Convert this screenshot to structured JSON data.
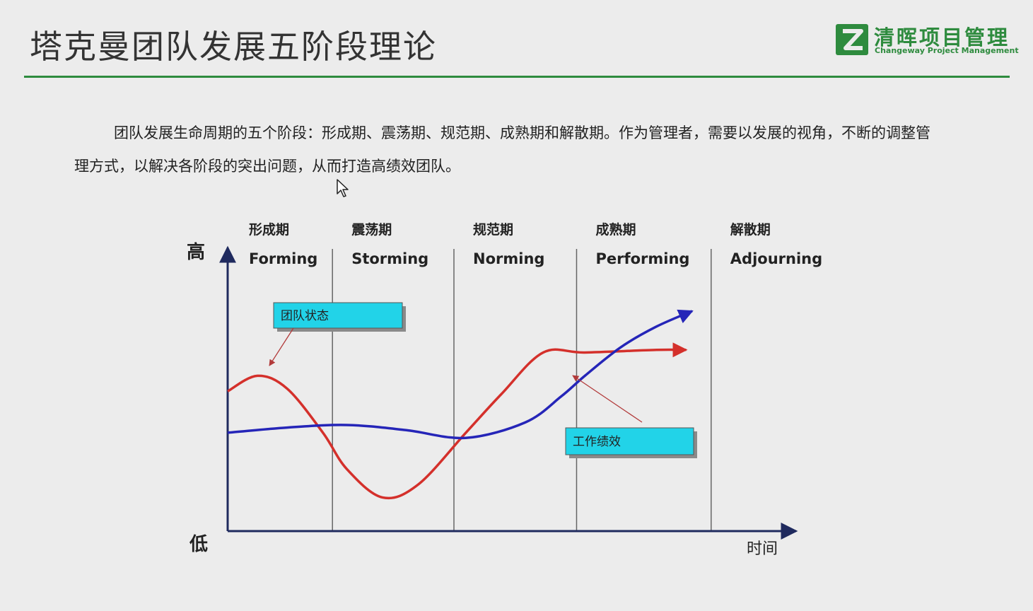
{
  "slide": {
    "title": "塔克曼团队发展五阶段理论",
    "logo": {
      "name_cn": "清晖项目管理",
      "name_en": "Changeway Project Management",
      "color": "#2e8b3e"
    },
    "paragraph": "团队发展生命周期的五个阶段：形成期、震荡期、规范期、成熟期和解散期。作为管理者，需要以发展的视角，不断的调整管理方式，以解决各阶段的突出问题，从而打造高绩效团队。"
  },
  "chart_data": {
    "type": "line",
    "title": "",
    "xlabel": "时间",
    "y_high_label": "高",
    "y_low_label": "低",
    "grid": false,
    "stages": [
      {
        "name_cn": "形成期",
        "name_en": "Forming"
      },
      {
        "name_cn": "震荡期",
        "name_en": "Storming"
      },
      {
        "name_cn": "规范期",
        "name_en": "Norming"
      },
      {
        "name_cn": "成熟期",
        "name_en": "Performing"
      },
      {
        "name_cn": "解散期",
        "name_en": "Adjourning"
      }
    ],
    "x_range": [
      0,
      4.75
    ],
    "ylim": [
      0,
      1
    ],
    "series": [
      {
        "name": "团队状态",
        "color": "#d4302b",
        "x": [
          0,
          0.25,
          0.5,
          0.8,
          1.0,
          1.3,
          1.6,
          2.0,
          2.3,
          2.65,
          3.0,
          3.6,
          3.85
        ],
        "y": [
          0.54,
          0.6,
          0.55,
          0.38,
          0.24,
          0.13,
          0.18,
          0.38,
          0.53,
          0.69,
          0.69,
          0.7,
          0.7
        ]
      },
      {
        "name": "工作绩效",
        "color": "#2525b8",
        "x": [
          0,
          0.5,
          1.0,
          1.5,
          2.0,
          2.5,
          2.8,
          3.0,
          3.3,
          3.6,
          3.9
        ],
        "y": [
          0.38,
          0.4,
          0.41,
          0.39,
          0.36,
          0.42,
          0.52,
          0.6,
          0.71,
          0.79,
          0.85
        ]
      }
    ],
    "callouts": [
      {
        "text": "团队状态",
        "series": "团队状态"
      },
      {
        "text": "工作绩效",
        "series": "工作绩效"
      }
    ],
    "colors": {
      "axis": "#1f2a5e",
      "callout_fill": "#22d3e8"
    }
  }
}
